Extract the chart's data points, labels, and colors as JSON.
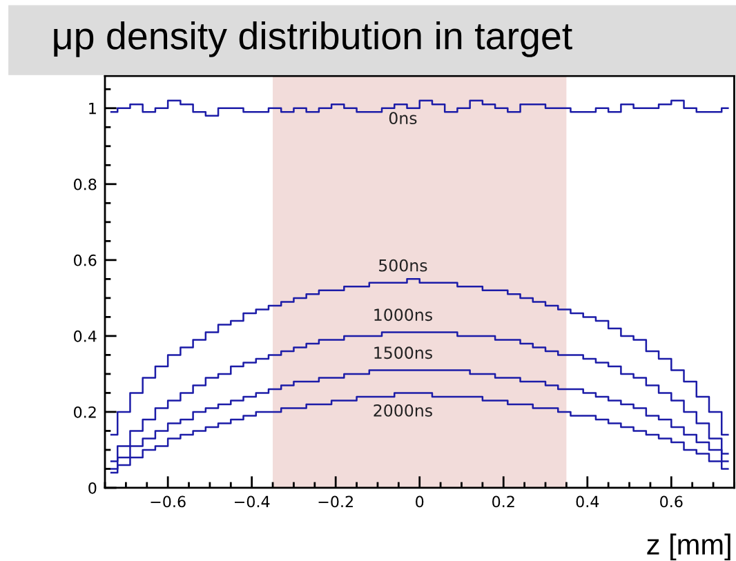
{
  "chart_data": {
    "type": "step",
    "title": "μp density distribution in target",
    "xlabel": "z [mm]",
    "x": [
      -0.735,
      -0.705,
      -0.675,
      -0.645,
      -0.615,
      -0.585,
      -0.555,
      -0.525,
      -0.495,
      -0.465,
      -0.435,
      -0.405,
      -0.375,
      -0.345,
      -0.315,
      -0.285,
      -0.255,
      -0.225,
      -0.195,
      -0.165,
      -0.135,
      -0.105,
      -0.075,
      -0.045,
      -0.015,
      0.015,
      0.045,
      0.075,
      0.105,
      0.135,
      0.165,
      0.195,
      0.225,
      0.255,
      0.285,
      0.315,
      0.345,
      0.375,
      0.405,
      0.435,
      0.465,
      0.495,
      0.525,
      0.555,
      0.585,
      0.615,
      0.645,
      0.675,
      0.705,
      0.735
    ],
    "series": [
      {
        "name": "0ns",
        "color": "#1c1ca8",
        "values": [
          0.99,
          1.0,
          1.01,
          0.99,
          1.0,
          1.02,
          1.01,
          0.99,
          0.98,
          1.0,
          1.0,
          0.99,
          0.99,
          1.0,
          0.99,
          1.0,
          0.99,
          1.0,
          1.01,
          1.0,
          0.99,
          0.99,
          1.0,
          1.01,
          1.0,
          1.02,
          1.01,
          0.99,
          1.0,
          1.02,
          1.01,
          1.0,
          0.99,
          1.01,
          1.01,
          1.0,
          1.0,
          0.99,
          0.99,
          1.0,
          0.99,
          1.01,
          1.0,
          1.0,
          1.01,
          1.02,
          1.0,
          0.99,
          0.99,
          1.0
        ]
      },
      {
        "name": "500ns",
        "color": "#1c1ca8",
        "values": [
          0.14,
          0.2,
          0.25,
          0.29,
          0.32,
          0.35,
          0.37,
          0.39,
          0.41,
          0.43,
          0.44,
          0.46,
          0.47,
          0.48,
          0.49,
          0.5,
          0.51,
          0.52,
          0.52,
          0.53,
          0.53,
          0.54,
          0.54,
          0.54,
          0.55,
          0.54,
          0.54,
          0.54,
          0.53,
          0.53,
          0.52,
          0.52,
          0.51,
          0.5,
          0.49,
          0.48,
          0.47,
          0.46,
          0.45,
          0.44,
          0.42,
          0.4,
          0.39,
          0.36,
          0.34,
          0.31,
          0.28,
          0.24,
          0.2,
          0.14
        ]
      },
      {
        "name": "1000ns",
        "color": "#1c1ca8",
        "values": [
          0.07,
          0.11,
          0.15,
          0.18,
          0.21,
          0.23,
          0.25,
          0.27,
          0.29,
          0.3,
          0.32,
          0.33,
          0.34,
          0.35,
          0.36,
          0.37,
          0.38,
          0.39,
          0.39,
          0.4,
          0.4,
          0.4,
          0.41,
          0.41,
          0.41,
          0.41,
          0.41,
          0.41,
          0.4,
          0.4,
          0.4,
          0.39,
          0.39,
          0.38,
          0.37,
          0.36,
          0.35,
          0.35,
          0.34,
          0.33,
          0.32,
          0.3,
          0.29,
          0.27,
          0.25,
          0.23,
          0.2,
          0.17,
          0.13,
          0.09
        ]
      },
      {
        "name": "1500ns",
        "color": "#1c1ca8",
        "values": [
          0.05,
          0.08,
          0.11,
          0.13,
          0.15,
          0.17,
          0.18,
          0.2,
          0.21,
          0.22,
          0.23,
          0.24,
          0.25,
          0.26,
          0.27,
          0.28,
          0.28,
          0.29,
          0.29,
          0.3,
          0.3,
          0.31,
          0.31,
          0.31,
          0.31,
          0.31,
          0.31,
          0.31,
          0.31,
          0.3,
          0.3,
          0.29,
          0.29,
          0.28,
          0.28,
          0.27,
          0.26,
          0.26,
          0.25,
          0.24,
          0.23,
          0.22,
          0.21,
          0.19,
          0.18,
          0.16,
          0.14,
          0.12,
          0.1,
          0.07
        ]
      },
      {
        "name": "2000ns",
        "color": "#1c1ca8",
        "values": [
          0.04,
          0.06,
          0.08,
          0.1,
          0.11,
          0.13,
          0.14,
          0.15,
          0.16,
          0.17,
          0.18,
          0.19,
          0.2,
          0.2,
          0.21,
          0.21,
          0.22,
          0.22,
          0.23,
          0.23,
          0.24,
          0.24,
          0.24,
          0.25,
          0.25,
          0.25,
          0.24,
          0.24,
          0.24,
          0.24,
          0.23,
          0.23,
          0.22,
          0.22,
          0.21,
          0.21,
          0.2,
          0.19,
          0.19,
          0.18,
          0.17,
          0.16,
          0.15,
          0.14,
          0.13,
          0.12,
          0.1,
          0.09,
          0.07,
          0.05
        ]
      }
    ],
    "xlim": [
      -0.75,
      0.75
    ],
    "xticks": [
      {
        "value": -0.6,
        "label": "−0.6"
      },
      {
        "value": -0.4,
        "label": "−0.4"
      },
      {
        "value": -0.2,
        "label": "−0.2"
      },
      0,
      0.2,
      0.4,
      0.6
    ],
    "ylim": [
      0,
      1.085
    ],
    "yticks": [
      0,
      0.2,
      0.4,
      0.6,
      0.8,
      1
    ],
    "bands": [
      {
        "axis": "x",
        "from": -0.35,
        "to": 0.35,
        "color": "#f2dcda"
      }
    ],
    "grid": false,
    "legend": false
  }
}
